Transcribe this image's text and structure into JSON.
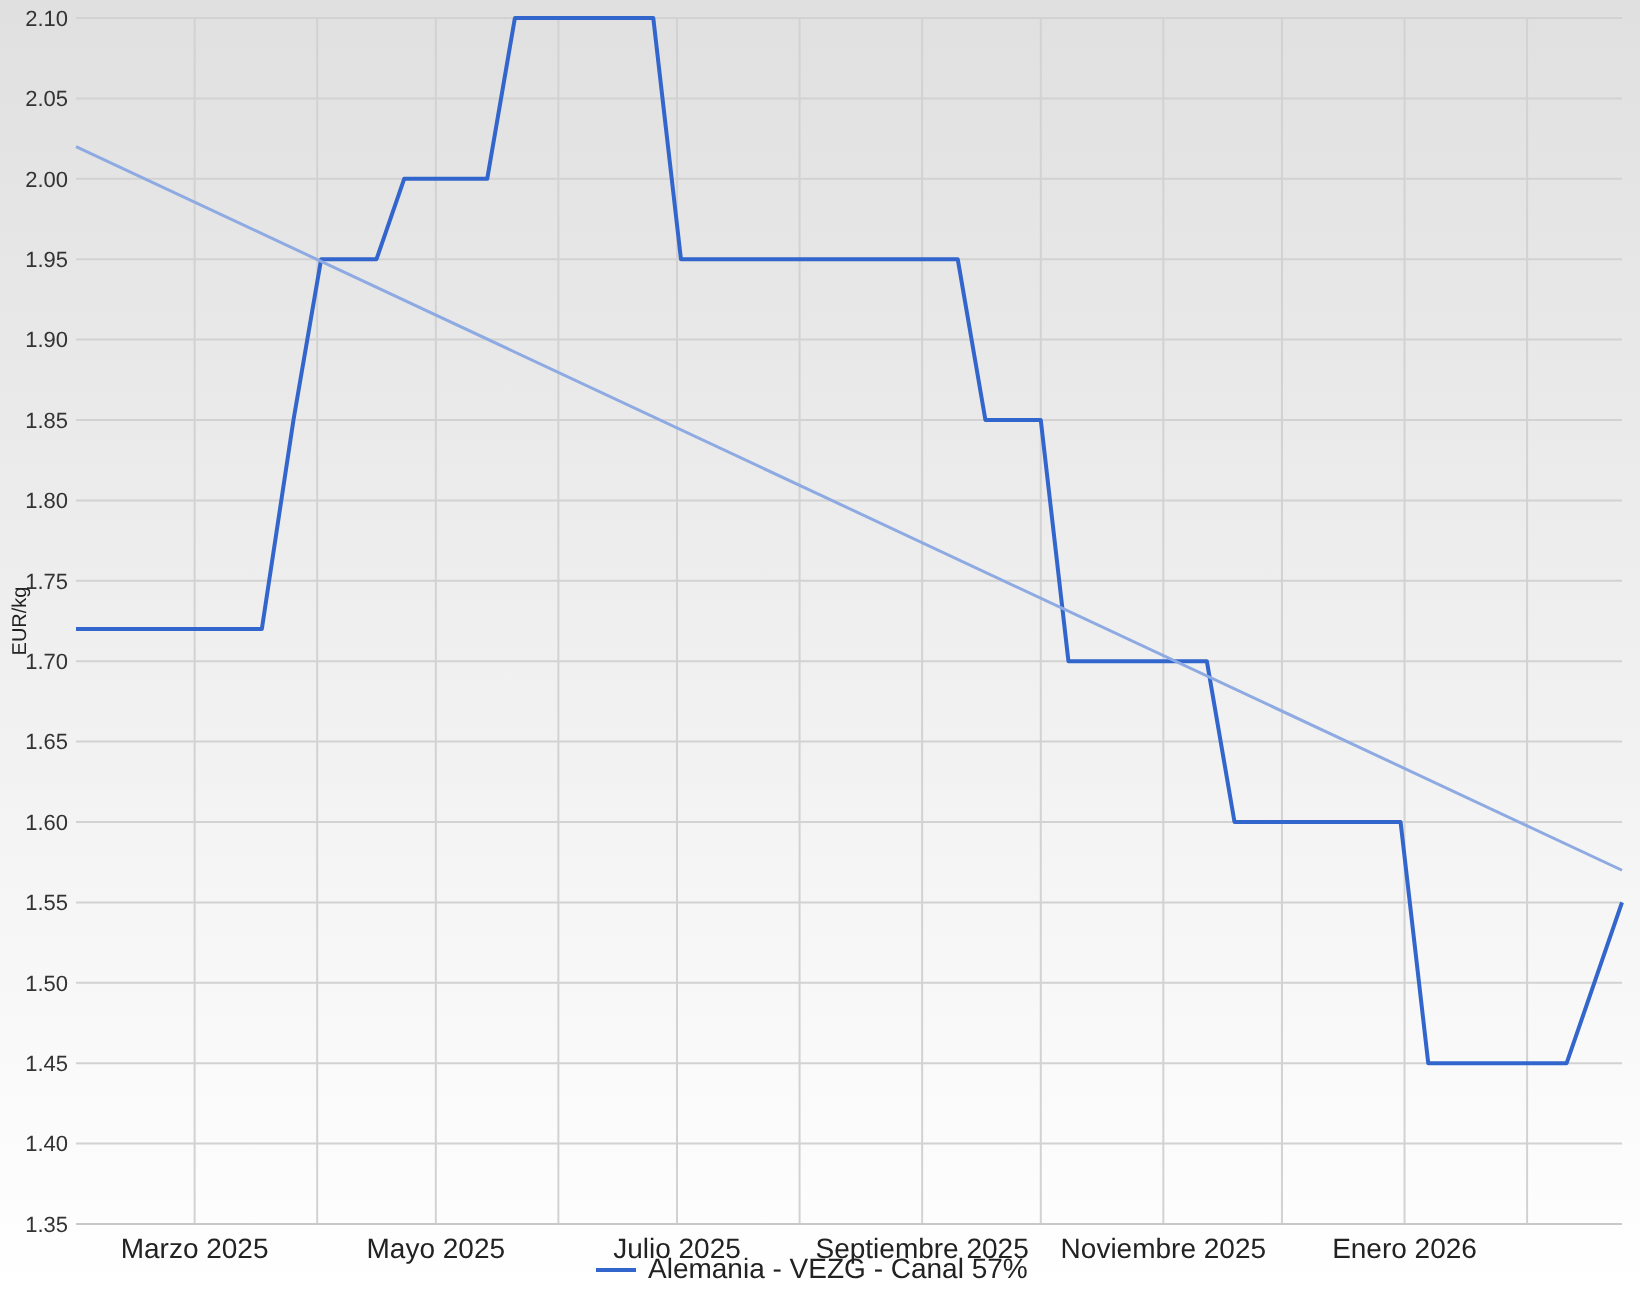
{
  "chart_data": {
    "type": "line",
    "ylabel": "EUR/kg",
    "xlim": [
      "2025-01-30",
      "2026-02-25"
    ],
    "ylim": [
      1.35,
      2.1
    ],
    "yticks": [
      {
        "value": 1.35,
        "label": "1.35"
      },
      {
        "value": 1.4,
        "label": "1.40"
      },
      {
        "value": 1.45,
        "label": "1.45"
      },
      {
        "value": 1.5,
        "label": "1.50"
      },
      {
        "value": 1.55,
        "label": "1.55"
      },
      {
        "value": 1.6,
        "label": "1.60"
      },
      {
        "value": 1.65,
        "label": "1.65"
      },
      {
        "value": 1.7,
        "label": "1.70"
      },
      {
        "value": 1.75,
        "label": "1.75"
      },
      {
        "value": 1.8,
        "label": "1.80"
      },
      {
        "value": 1.85,
        "label": "1.85"
      },
      {
        "value": 1.9,
        "label": "1.90"
      },
      {
        "value": 1.95,
        "label": "1.95"
      },
      {
        "value": 2.0,
        "label": "2.00"
      },
      {
        "value": 2.05,
        "label": "2.05"
      },
      {
        "value": 2.1,
        "label": "2.10"
      }
    ],
    "xticks": [
      {
        "value": "2025-03-01",
        "label": "Marzo 2025"
      },
      {
        "value": "2025-04-01",
        "label": null
      },
      {
        "value": "2025-05-01",
        "label": "Mayo 2025"
      },
      {
        "value": "2025-06-01",
        "label": null
      },
      {
        "value": "2025-07-01",
        "label": "Julio 2025"
      },
      {
        "value": "2025-08-01",
        "label": null
      },
      {
        "value": "2025-09-01",
        "label": "Septiembre 2025"
      },
      {
        "value": "2025-10-01",
        "label": null
      },
      {
        "value": "2025-11-01",
        "label": "Noviembre 2025"
      },
      {
        "value": "2025-12-01",
        "label": null
      },
      {
        "value": "2026-01-01",
        "label": "Enero 2026"
      },
      {
        "value": "2026-02-01",
        "label": null
      }
    ],
    "grid": true,
    "legend": "bottom",
    "line_style": "solid",
    "marker": "none",
    "series": [
      {
        "name": "Alemania - VEZG - Canal 57%",
        "color": "#3366cc",
        "x": [
          "2025-01-30",
          "2025-03-18",
          "2025-03-26",
          "2025-04-02",
          "2025-04-16",
          "2025-04-23",
          "2025-05-14",
          "2025-05-21",
          "2025-06-25",
          "2025-07-02",
          "2025-09-10",
          "2025-09-17",
          "2025-10-01",
          "2025-10-08",
          "2025-11-12",
          "2025-11-19",
          "2025-12-31",
          "2026-01-07",
          "2026-02-11",
          "2026-02-25"
        ],
        "values": [
          1.72,
          1.72,
          1.85,
          1.95,
          1.95,
          2.0,
          2.0,
          2.1,
          2.1,
          1.95,
          1.95,
          1.85,
          1.85,
          1.7,
          1.7,
          1.6,
          1.6,
          1.45,
          1.45,
          1.55
        ]
      },
      {
        "type": "line",
        "color": "#8eaae2",
        "x": [
          "2025-01-30",
          "2026-02-25"
        ],
        "values": [
          2.02,
          1.57
        ]
      }
    ]
  }
}
